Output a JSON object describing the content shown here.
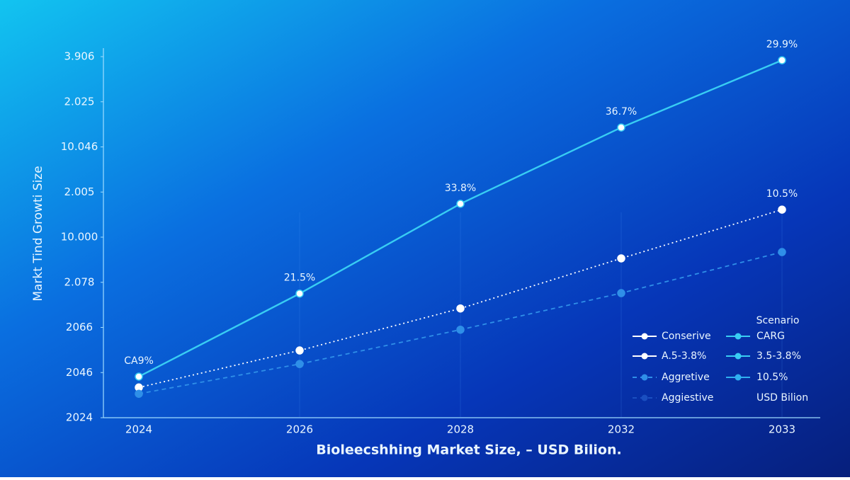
{
  "chart_data": {
    "type": "line",
    "x_label": "Bioleecshhing Market Size, – USD Bilion.",
    "y_label": "Markt Tind Growti Size",
    "categories": [
      "2024",
      "2026",
      "2028",
      "2032",
      "2033"
    ],
    "series": [
      {
        "color": "#38cdf3",
        "style": "solid",
        "values": [
          0.91,
          2.75,
          4.74,
          6.43,
          7.92
        ]
      },
      {
        "color": "#ffffff",
        "style": "dotted",
        "values": [
          0.67,
          1.49,
          2.42,
          3.53,
          4.61
        ]
      },
      {
        "color": "#2f8fe8",
        "style": "dashed",
        "values": [
          0.53,
          1.19,
          1.95,
          2.76,
          3.67
        ]
      }
    ],
    "annotations": [
      {
        "text": "CA9%",
        "x": "2024",
        "y": 0.91
      },
      {
        "text": "21.5%",
        "x": "2026",
        "y": 2.75
      },
      {
        "text": "33.8%",
        "x": "2028",
        "y": 4.74
      },
      {
        "text": "36.7%",
        "x": "2032",
        "y": 6.43
      },
      {
        "text": "29.9%",
        "x": "2033",
        "y": 7.92
      },
      {
        "text": "10.5%",
        "x": "2033",
        "y": 4.61
      }
    ],
    "ylim": [
      0,
      8
    ],
    "yticks": [
      {
        "value": 0,
        "label": "2024"
      },
      {
        "value": 1,
        "label": "2046"
      },
      {
        "value": 2,
        "label": "2066"
      },
      {
        "value": 3,
        "label": "2.078"
      },
      {
        "value": 4,
        "label": "10.000"
      },
      {
        "value": 5,
        "label": "2.005"
      },
      {
        "value": 6,
        "label": "10.046"
      },
      {
        "value": 7,
        "label": "2.025"
      },
      {
        "value": 8,
        "label": "3.906"
      }
    ],
    "legend": {
      "title": "Scenario",
      "entries": [
        {
          "name": "Conserive",
          "color": "#ffffff",
          "style": "solid"
        },
        {
          "name": "A.5-3.8%",
          "color": "#ffffff",
          "style": "solid"
        },
        {
          "name": "Aggretive",
          "color": "#2f8fe8",
          "style": "dashed"
        },
        {
          "name": "Aggiestive",
          "color": "#1a4fc0",
          "style": "dashed"
        },
        {
          "name": "CARG",
          "color": "#38cdf3",
          "style": "solid"
        },
        {
          "name": "3.5-3.8%",
          "color": "#38cdf3",
          "style": "solid"
        },
        {
          "name": "10.5%",
          "color": "#2fb0f0",
          "style": "solid"
        },
        {
          "name": "USD Bilion",
          "color": "none",
          "style": "none"
        }
      ]
    }
  }
}
